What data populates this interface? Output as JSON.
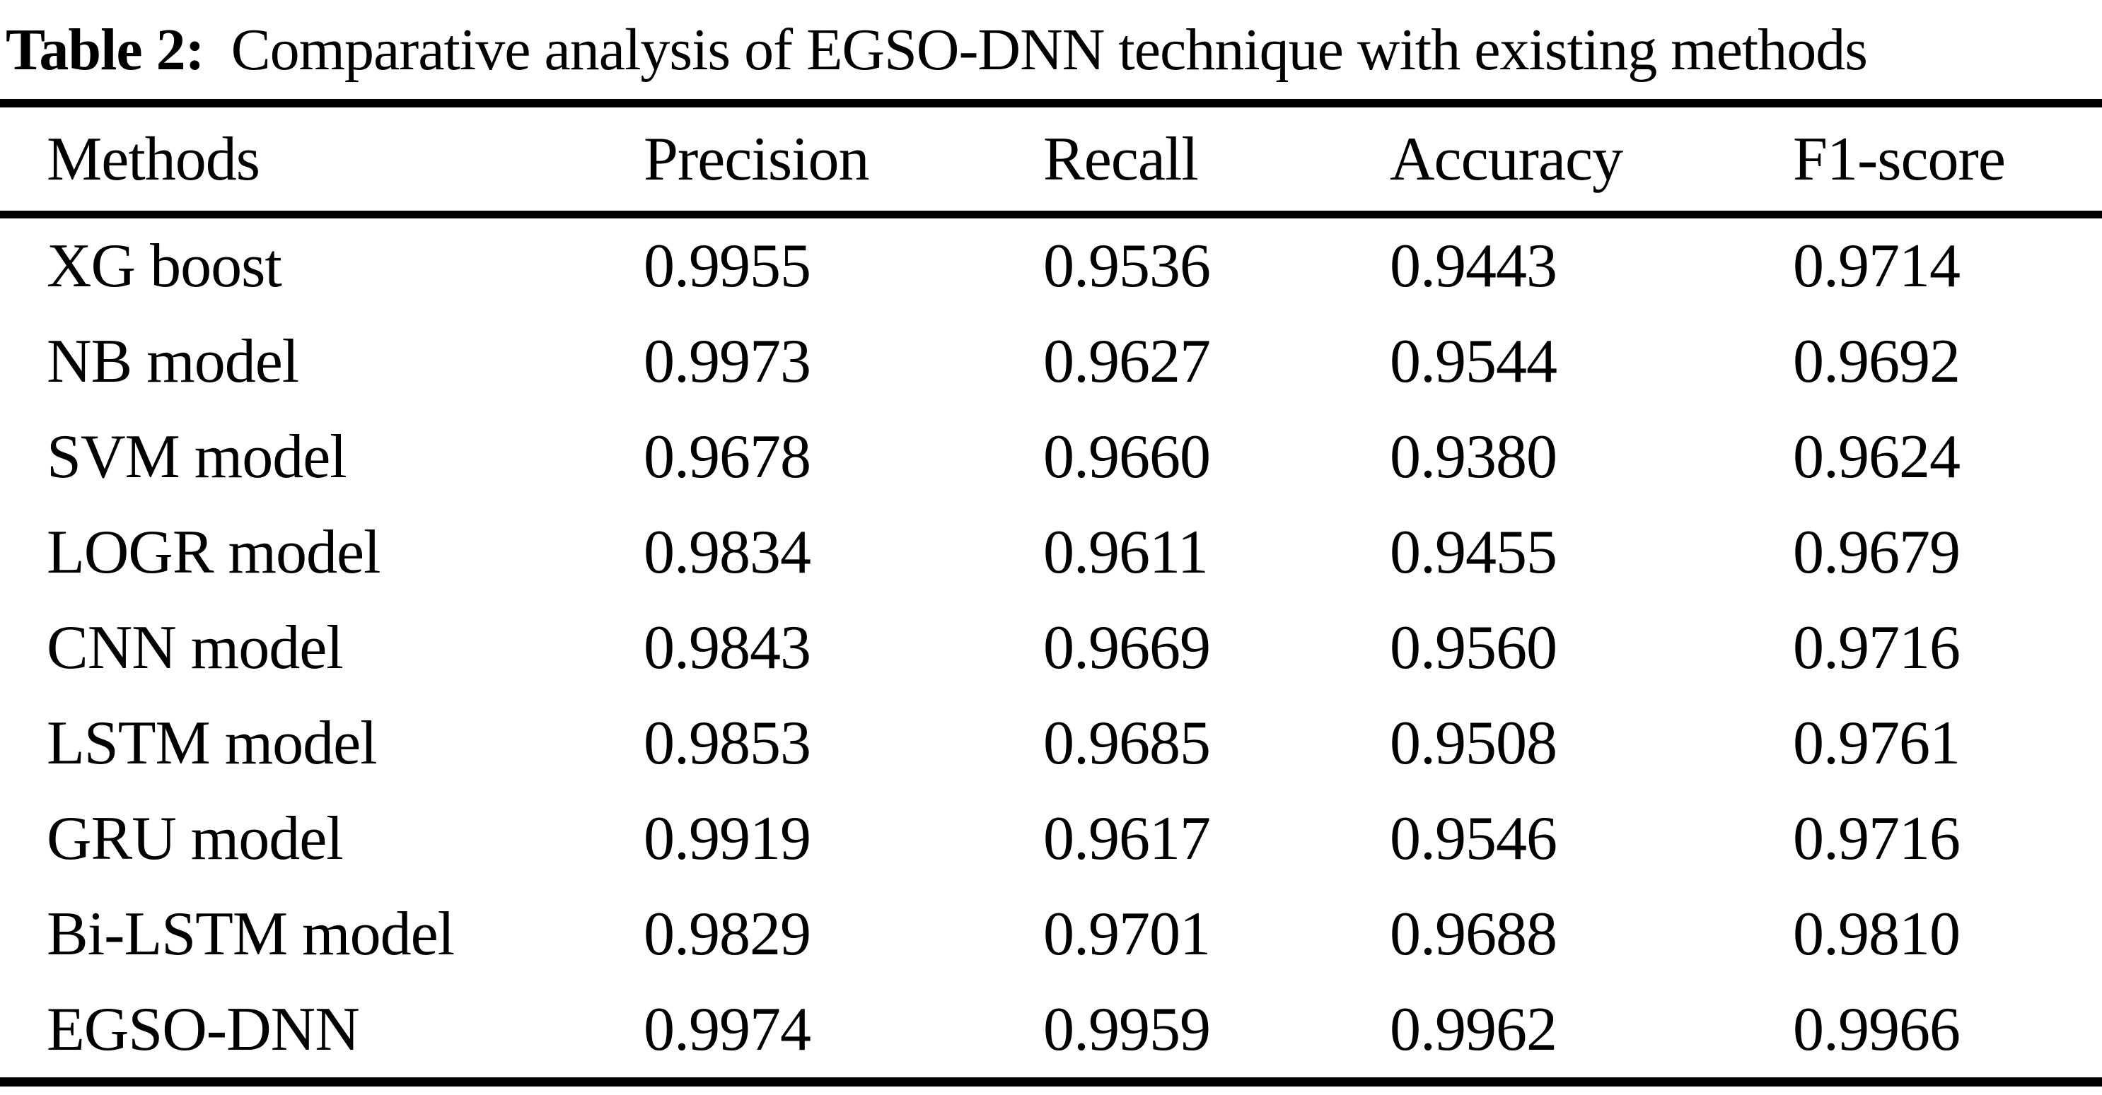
{
  "caption": {
    "label": "Table 2:",
    "text": "Comparative analysis of EGSO-DNN technique with existing methods"
  },
  "table": {
    "columns": [
      "Methods",
      "Precision",
      "Recall",
      "Accuracy",
      "F1-score"
    ],
    "rows": [
      {
        "method": "XG boost",
        "precision": "0.9955",
        "recall": "0.9536",
        "accuracy": "0.9443",
        "f1": "0.9714"
      },
      {
        "method": "NB model",
        "precision": "0.9973",
        "recall": "0.9627",
        "accuracy": "0.9544",
        "f1": "0.9692"
      },
      {
        "method": "SVM model",
        "precision": "0.9678",
        "recall": "0.9660",
        "accuracy": "0.9380",
        "f1": "0.9624"
      },
      {
        "method": "LOGR model",
        "precision": "0.9834",
        "recall": "0.9611",
        "accuracy": "0.9455",
        "f1": "0.9679"
      },
      {
        "method": "CNN model",
        "precision": "0.9843",
        "recall": "0.9669",
        "accuracy": "0.9560",
        "f1": "0.9716"
      },
      {
        "method": "LSTM model",
        "precision": "0.9853",
        "recall": "0.9685",
        "accuracy": "0.9508",
        "f1": "0.9761"
      },
      {
        "method": "GRU model",
        "precision": "0.9919",
        "recall": "0.9617",
        "accuracy": "0.9546",
        "f1": "0.9716"
      },
      {
        "method": "Bi-LSTM model",
        "precision": "0.9829",
        "recall": "0.9701",
        "accuracy": "0.9688",
        "f1": "0.9810"
      },
      {
        "method": "EGSO-DNN",
        "precision": "0.9974",
        "recall": "0.9959",
        "accuracy": "0.9962",
        "f1": "0.9966"
      }
    ]
  },
  "colors": {
    "text": "#000000",
    "background": "#ffffff",
    "rule": "#000000"
  }
}
